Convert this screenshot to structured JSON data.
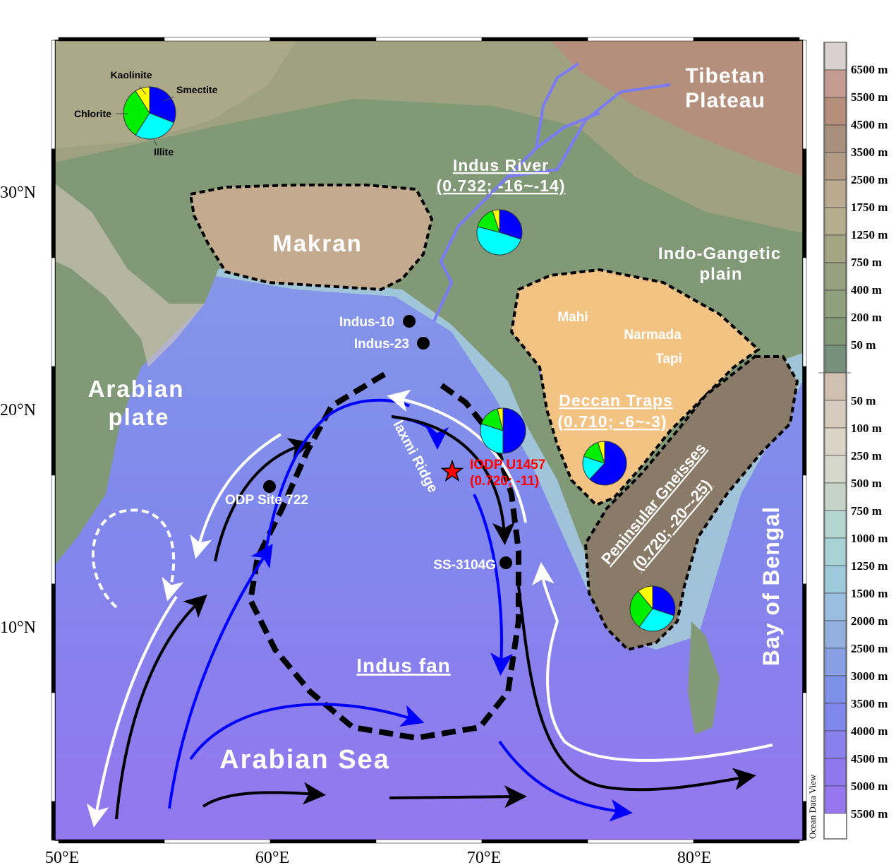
{
  "map": {
    "axes": {
      "x_ticks": [
        "50°E",
        "60°E",
        "70°E",
        "80°E"
      ],
      "y_ticks": [
        "30°N",
        "20°N",
        "10°N"
      ],
      "lon_range": [
        50,
        85.5
      ],
      "lat_range": [
        -0.5,
        36
      ]
    },
    "regions": {
      "tibet": "Tibetan",
      "tibet2": "Plateau",
      "makran": "Makran",
      "indo_gangetic": "Indo-Gangetic",
      "indo_gangetic2": "plain",
      "arabian_plate": "Arabian",
      "arabian_plate2": "plate",
      "arabian_sea": "Arabian Sea",
      "bay_of_bengal": "Bay of Bengal",
      "indus_fan": "Indus fan",
      "laxmi_ridge": "laxmi Ridge"
    },
    "sources": {
      "indus_river": {
        "name": "Indus River",
        "values": "(0.732; -16~-14)"
      },
      "deccan": {
        "name": "Deccan Traps",
        "values": "(0.710; -6~-3)"
      },
      "peninsular": {
        "name": "Peninsular Gneisses",
        "values": "(0.720; -20~-25)"
      }
    },
    "rivers": [
      "Mahi",
      "Narmada",
      "Tapi"
    ],
    "sites": {
      "u1457": {
        "name": "IODP U1457",
        "values": "(0.720; -11)",
        "color": "#ff0000"
      },
      "indus10": "Indus-10",
      "indus23": "Indus-23",
      "odp722": "ODP Site 722",
      "ss3104g": "SS-3104G"
    },
    "pie_legend": {
      "kaolinite": "Kaolinite",
      "smectite": "Smectite",
      "chlorite": "Chlorite",
      "illite": "Illite"
    },
    "pie_colors": {
      "smectite": "#0000ff",
      "illite": "#00ffff",
      "chlorite": "#00ee00",
      "kaolinite": "#ffff00"
    },
    "pies": [
      {
        "site": "legend",
        "smectite": 0.31,
        "illite": 0.28,
        "chlorite": 0.32,
        "kaolinite": 0.09
      },
      {
        "site": "Indus River",
        "smectite": 0.3,
        "illite": 0.49,
        "chlorite": 0.16,
        "kaolinite": 0.05
      },
      {
        "site": "IODP U1457",
        "smectite": 0.5,
        "illite": 0.3,
        "chlorite": 0.16,
        "kaolinite": 0.04
      },
      {
        "site": "Deccan Traps",
        "smectite": 0.62,
        "illite": 0.18,
        "chlorite": 0.15,
        "kaolinite": 0.05
      },
      {
        "site": "Peninsular Gneisses",
        "smectite": 0.3,
        "illite": 0.3,
        "chlorite": 0.29,
        "kaolinite": 0.11
      }
    ],
    "colorbar": {
      "land": [
        {
          "label": "6500 m",
          "color": "#d9d0cf"
        },
        {
          "label": "5500 m",
          "color": "#c39d92"
        },
        {
          "label": "4500 m",
          "color": "#b48f7c"
        },
        {
          "label": "3500 m",
          "color": "#a98f7e"
        },
        {
          "label": "2500 m",
          "color": "#b39c86"
        },
        {
          "label": "1750 m",
          "color": "#bba990"
        },
        {
          "label": "1250 m",
          "color": "#b5ae8e"
        },
        {
          "label": "750 m",
          "color": "#a3a583"
        },
        {
          "label": "400 m",
          "color": "#97a07e"
        },
        {
          "label": "200 m",
          "color": "#8ea07c"
        },
        {
          "label": "50 m",
          "color": "#829978"
        },
        {
          "label": "",
          "color": "#76907a"
        }
      ],
      "ocean": [
        {
          "label": "50 m",
          "color": "#d1bfb0"
        },
        {
          "label": "100 m",
          "color": "#d6cabd"
        },
        {
          "label": "250 m",
          "color": "#dad3c6"
        },
        {
          "label": "500 m",
          "color": "#d6d7cb"
        },
        {
          "label": "750 m",
          "color": "#c6d3c9"
        },
        {
          "label": "1000 m",
          "color": "#b4d5d2"
        },
        {
          "label": "1250 m",
          "color": "#a8d2d5"
        },
        {
          "label": "1500 m",
          "color": "#9ecbdb"
        },
        {
          "label": "2000 m",
          "color": "#9bbfe0"
        },
        {
          "label": "2500 m",
          "color": "#93b0e1"
        },
        {
          "label": "3000 m",
          "color": "#88a0e3"
        },
        {
          "label": "3500 m",
          "color": "#7f90e8"
        },
        {
          "label": "4000 m",
          "color": "#8088ec"
        },
        {
          "label": "4500 m",
          "color": "#8a80ec"
        },
        {
          "label": "5000 m",
          "color": "#8f78ec"
        },
        {
          "label": "5500 m",
          "color": "#9677ee"
        }
      ],
      "credit": "Ocean Data View"
    }
  }
}
